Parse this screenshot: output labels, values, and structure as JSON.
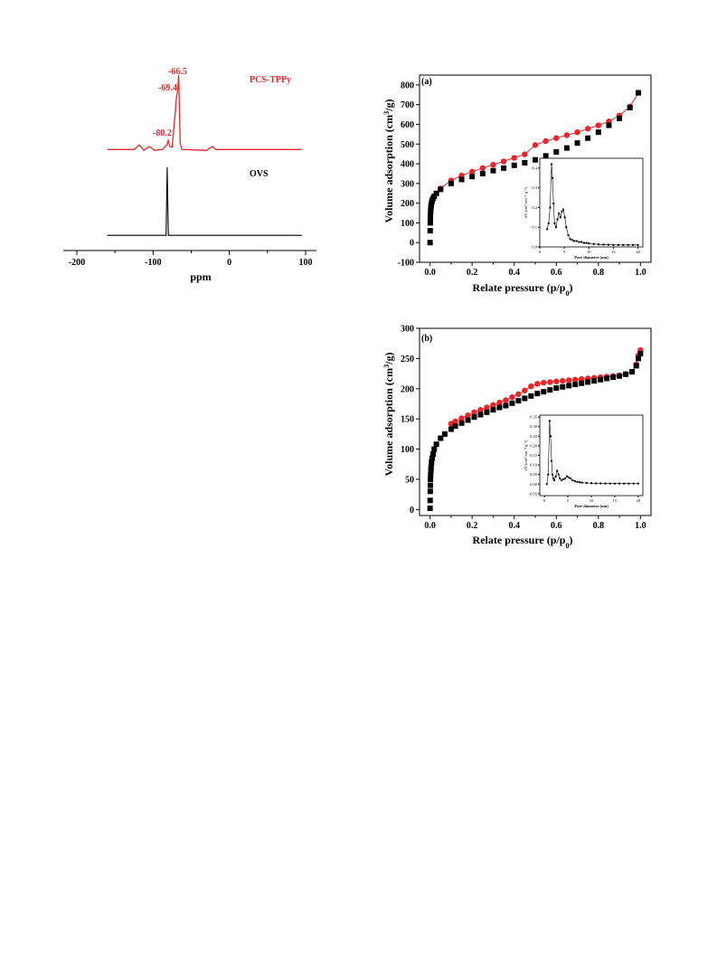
{
  "chart_data": [
    {
      "id": "nmr",
      "type": "line",
      "xlabel": "ppm",
      "xlim": [
        -200,
        100
      ],
      "xticks": [
        -200,
        -100,
        0,
        100
      ],
      "series": [
        {
          "name": "PCS-TPPy",
          "color": "#e8262a",
          "points": [
            [
              -160,
              0.02
            ],
            [
              -125,
              0.02
            ],
            [
              -118,
              0.08
            ],
            [
              -112,
              0.01
            ],
            [
              -105,
              0.06
            ],
            [
              -98,
              0.01
            ],
            [
              -88,
              0.02
            ],
            [
              -82,
              0.08
            ],
            [
              -80.2,
              0.14
            ],
            [
              -78,
              0.06
            ],
            [
              -75,
              0.05
            ],
            [
              -71,
              0.5
            ],
            [
              -69.4,
              0.7
            ],
            [
              -67.8,
              0.8
            ],
            [
              -66.5,
              1.0
            ],
            [
              -65.5,
              0.6
            ],
            [
              -64.5,
              0.1
            ],
            [
              -62,
              0.02
            ],
            [
              -30,
              0.01
            ],
            [
              -22,
              0.06
            ],
            [
              -18,
              0.02
            ],
            [
              0,
              0.02
            ],
            [
              40,
              0.02
            ],
            [
              95,
              0.02
            ]
          ],
          "peak_labels": [
            {
              "x": -66.5,
              "text": "-66.5"
            },
            {
              "x": -69.4,
              "text": "-69.4"
            },
            {
              "x": -80.2,
              "text": "-80.2"
            }
          ]
        },
        {
          "name": "OVS",
          "color": "#000000",
          "points": [
            [
              -160,
              0.01
            ],
            [
              -100,
              0.01
            ],
            [
              -83,
              0.01
            ],
            [
              -81.5,
              1.0
            ],
            [
              -80,
              0.01
            ],
            [
              95,
              0.01
            ]
          ]
        }
      ]
    },
    {
      "id": "a",
      "type": "scatter",
      "panel_label": "(a)",
      "xlabel": "Relate pressure (p/p",
      "xlabel_sub": "0",
      "xlabel_end": ")",
      "ylabel": "Volume adsorption (cm",
      "ylabel_sup": "3",
      "ylabel_end": "/g)",
      "xlim": [
        -0.05,
        1.05
      ],
      "ylim": [
        -100,
        850
      ],
      "xticks": [
        "0.0",
        "0.2",
        "0.4",
        "0.6",
        "0.8",
        "1.0"
      ],
      "yticks": [
        "-100",
        "0",
        "100",
        "200",
        "300",
        "400",
        "500",
        "600",
        "700",
        "800"
      ],
      "series": [
        {
          "color": "#000000",
          "marker": "square",
          "x": [
            0.0,
            0.0005,
            0.001,
            0.0015,
            0.002,
            0.003,
            0.004,
            0.005,
            0.006,
            0.008,
            0.01,
            0.015,
            0.02,
            0.03,
            0.05,
            0.1,
            0.15,
            0.2,
            0.25,
            0.3,
            0.35,
            0.4,
            0.45,
            0.5,
            0.55,
            0.6,
            0.65,
            0.7,
            0.75,
            0.8,
            0.85,
            0.9,
            0.95,
            0.99
          ],
          "y": [
            0,
            60,
            100,
            120,
            140,
            160,
            175,
            185,
            195,
            205,
            215,
            225,
            235,
            250,
            270,
            300,
            320,
            335,
            350,
            365,
            378,
            392,
            405,
            420,
            440,
            460,
            480,
            505,
            530,
            560,
            595,
            630,
            685,
            760
          ]
        },
        {
          "color": "#e8262a",
          "marker": "circle",
          "x": [
            0.05,
            0.1,
            0.15,
            0.2,
            0.25,
            0.3,
            0.35,
            0.4,
            0.45,
            0.5,
            0.55,
            0.6,
            0.65,
            0.7,
            0.75,
            0.8,
            0.85,
            0.9,
            0.95,
            0.99
          ],
          "y": [
            275,
            315,
            340,
            360,
            378,
            395,
            412,
            430,
            448,
            495,
            515,
            530,
            545,
            560,
            578,
            595,
            615,
            645,
            690,
            760
          ]
        }
      ],
      "inset": {
        "xlabel": "Pore diameter (nm)",
        "ylabel": "dV (cm³ nm⁻¹ g⁻¹)",
        "xlim": [
          0,
          21
        ],
        "ylim": [
          0,
          0.45
        ],
        "xticks": [
          "0",
          "5",
          "10",
          "15",
          "20"
        ],
        "yticks": [
          "0.0",
          "0.1",
          "0.2",
          "0.3",
          "0.4"
        ],
        "x": [
          1.5,
          1.8,
          2.1,
          2.4,
          2.6,
          2.8,
          3.0,
          3.3,
          3.6,
          3.9,
          4.2,
          4.5,
          4.8,
          5.1,
          5.4,
          5.8,
          6.2,
          6.6,
          7.0,
          7.5,
          8.0,
          8.5,
          9.0,
          9.5,
          10,
          11,
          12,
          13,
          14,
          15,
          16,
          17,
          18,
          19,
          20
        ],
        "y": [
          0.09,
          0.12,
          0.2,
          0.42,
          0.35,
          0.22,
          0.12,
          0.1,
          0.14,
          0.17,
          0.15,
          0.18,
          0.19,
          0.15,
          0.1,
          0.06,
          0.04,
          0.035,
          0.03,
          0.03,
          0.025,
          0.025,
          0.02,
          0.02,
          0.018,
          0.015,
          0.013,
          0.012,
          0.011,
          0.01,
          0.01,
          0.01,
          0.01,
          0.01,
          0.01
        ]
      }
    },
    {
      "id": "b",
      "type": "scatter",
      "panel_label": "(b)",
      "xlabel": "Relate pressure (p/p",
      "xlabel_sub": "0",
      "xlabel_end": ")",
      "ylabel": "Volume adsorption (cm",
      "ylabel_sup": "3",
      "ylabel_end": "/g)",
      "xlim": [
        -0.05,
        1.05
      ],
      "ylim": [
        -10,
        300
      ],
      "xticks": [
        "0.0",
        "0.2",
        "0.4",
        "0.6",
        "0.8",
        "1.0"
      ],
      "yticks": [
        "0",
        "50",
        "100",
        "150",
        "200",
        "250",
        "300"
      ],
      "series": [
        {
          "color": "#000000",
          "marker": "square",
          "x": [
            0.0,
            0.0005,
            0.001,
            0.0015,
            0.002,
            0.003,
            0.004,
            0.005,
            0.007,
            0.01,
            0.015,
            0.02,
            0.03,
            0.05,
            0.07,
            0.1,
            0.12,
            0.15,
            0.18,
            0.21,
            0.24,
            0.27,
            0.3,
            0.33,
            0.36,
            0.39,
            0.42,
            0.45,
            0.48,
            0.51,
            0.54,
            0.57,
            0.6,
            0.63,
            0.66,
            0.69,
            0.72,
            0.75,
            0.78,
            0.81,
            0.84,
            0.87,
            0.9,
            0.93,
            0.96,
            0.98,
            0.99,
            1.0
          ],
          "y": [
            2,
            15,
            30,
            40,
            50,
            58,
            65,
            70,
            78,
            85,
            92,
            100,
            108,
            118,
            125,
            133,
            138,
            143,
            148,
            153,
            157,
            161,
            165,
            169,
            172,
            176,
            180,
            184,
            188,
            192,
            195,
            198,
            201,
            203,
            205,
            207,
            209,
            211,
            213,
            215,
            217,
            219,
            221,
            224,
            228,
            238,
            250,
            258
          ]
        },
        {
          "color": "#e8262a",
          "marker": "circle",
          "x": [
            0.1,
            0.12,
            0.15,
            0.18,
            0.21,
            0.24,
            0.27,
            0.3,
            0.33,
            0.36,
            0.39,
            0.42,
            0.45,
            0.48,
            0.51,
            0.54,
            0.57,
            0.6,
            0.63,
            0.66,
            0.69,
            0.72,
            0.75,
            0.78,
            0.81,
            0.84,
            0.87,
            0.9,
            0.93,
            0.96,
            0.98,
            0.99,
            1.0
          ],
          "y": [
            142,
            146,
            151,
            156,
            161,
            165,
            169,
            173,
            177,
            181,
            186,
            191,
            197,
            204,
            208,
            210,
            211,
            212,
            213,
            214,
            215,
            216,
            217,
            218,
            219,
            220,
            221,
            222,
            224,
            228,
            240,
            255,
            264
          ]
        }
      ],
      "inset": {
        "xlabel": "Pore diameter (nm)",
        "ylabel": "dV (cm³ nm⁻¹ g⁻¹)",
        "xlim": [
          -1,
          21
        ],
        "ylim": [
          -0.06,
          0.36
        ],
        "xticks": [
          "0",
          "5",
          "10",
          "15",
          "20"
        ],
        "yticks": [
          "-0.05",
          "0.00",
          "0.05",
          "0.10",
          "0.15",
          "0.20",
          "0.25",
          "0.30",
          "0.35"
        ],
        "x": [
          0.5,
          0.8,
          1.1,
          1.3,
          1.5,
          1.7,
          1.9,
          2.1,
          2.4,
          2.7,
          3.0,
          3.3,
          3.6,
          4.0,
          4.4,
          4.8,
          5.2,
          5.6,
          6.0,
          6.5,
          7.0,
          7.5,
          8,
          9,
          10,
          11,
          12,
          13,
          14,
          15,
          16,
          17,
          18,
          19,
          20
        ],
        "y": [
          0.0,
          0.05,
          0.33,
          0.25,
          0.12,
          0.05,
          0.03,
          0.02,
          0.04,
          0.07,
          0.05,
          0.03,
          0.02,
          0.025,
          0.03,
          0.04,
          0.035,
          0.03,
          0.02,
          0.015,
          0.012,
          0.01,
          0.008,
          0.006,
          0.005,
          0.004,
          0.004,
          0.003,
          0.003,
          0.003,
          0.003,
          0.003,
          0.003,
          0.003,
          0.003
        ]
      }
    }
  ]
}
